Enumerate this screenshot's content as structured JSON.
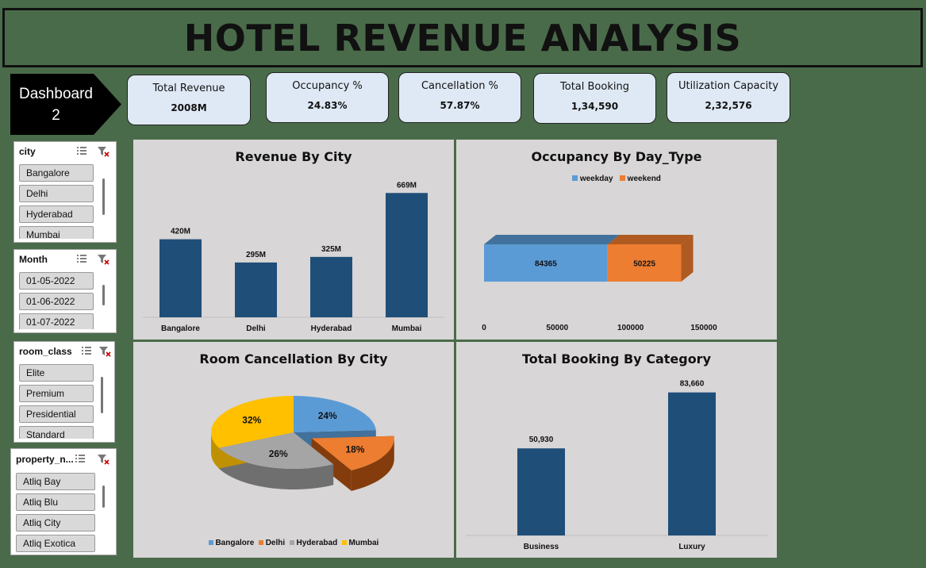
{
  "header": {
    "title": "HOTEL REVENUE ANALYSIS"
  },
  "dashboard_tag": {
    "line1": "Dashboard",
    "line2": "2"
  },
  "kpis": [
    {
      "label": "Total Revenue",
      "value": "2008M"
    },
    {
      "label": "Occupancy %",
      "value": "24.83%"
    },
    {
      "label": "Cancellation %",
      "value": "57.87%"
    },
    {
      "label": "Total Booking",
      "value": "1,34,590"
    },
    {
      "label": "Utilization Capacity",
      "value": "2,32,576"
    }
  ],
  "slicers": [
    {
      "title": "city",
      "items": [
        "Bangalore",
        "Delhi",
        "Hyderabad",
        "Mumbai"
      ]
    },
    {
      "title": "Month",
      "items": [
        "01-05-2022",
        "01-06-2022",
        "01-07-2022"
      ]
    },
    {
      "title": "room_class",
      "items": [
        "Elite",
        "Premium",
        "Presidential",
        "Standard"
      ]
    },
    {
      "title": "property_n...",
      "items": [
        "Atliq Bay",
        "Atliq Blu",
        "Atliq City",
        "Atliq Exotica"
      ]
    }
  ],
  "colors": {
    "navy": "#1f4e79",
    "blue": "#5b9bd5",
    "orange": "#ed7d31",
    "gray": "#a5a5a5",
    "gold": "#ffc000"
  },
  "chart_data": [
    {
      "type": "bar",
      "title": "Revenue By City",
      "categories": [
        "Bangalore",
        "Delhi",
        "Hyderabad",
        "Mumbai"
      ],
      "values": [
        420,
        295,
        325,
        669
      ],
      "data_labels": [
        "420M",
        "295M",
        "325M",
        "669M"
      ],
      "ylim": [
        0,
        700
      ],
      "grid": false
    },
    {
      "type": "bar",
      "orientation": "horizontal-stacked-3d",
      "title": "Occupancy By Day_Type",
      "series": [
        {
          "name": "weekday",
          "values": [
            84365
          ],
          "label": "84365"
        },
        {
          "name": "weekend",
          "values": [
            50225
          ],
          "label": "50225"
        }
      ],
      "xlim": [
        0,
        150000
      ],
      "xticks": [
        "0",
        "50000",
        "100000",
        "150000"
      ],
      "legend": "top"
    },
    {
      "type": "pie",
      "title": "Room Cancellation By City",
      "categories": [
        "Bangalore",
        "Delhi",
        "Hyderabad",
        "Mumbai"
      ],
      "values": [
        24,
        18,
        26,
        32
      ],
      "data_labels": [
        "24%",
        "18%",
        "26%",
        "32%"
      ],
      "legend": "bottom"
    },
    {
      "type": "bar",
      "title": "Total Booking By Category",
      "categories": [
        "Business",
        "Luxury"
      ],
      "values": [
        50930,
        83660
      ],
      "data_labels": [
        "50,930",
        "83,660"
      ],
      "ylim": [
        0,
        90000
      ]
    }
  ]
}
